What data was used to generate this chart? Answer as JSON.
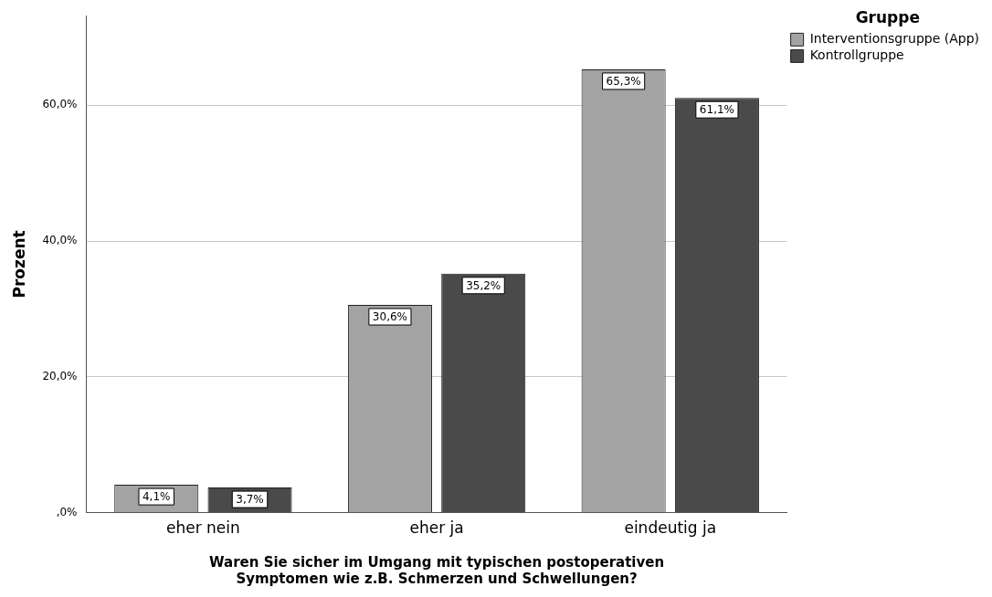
{
  "chart_data": {
    "type": "bar",
    "xlabel": "Waren Sie sicher im Umgang mit typischen postoperativen\nSymptomen wie z.B. Schmerzen und Schwellungen?",
    "ylabel": "Prozent",
    "legend_title": "Gruppe",
    "legend": "top right",
    "grid": "y",
    "categories": [
      "eher nein",
      "eher ja",
      "eindeutig ja"
    ],
    "series": [
      {
        "name": "Interventionsgruppe (App)",
        "color": "#a3a3a3",
        "values": [
          4.1,
          30.6,
          65.3
        ],
        "value_labels": [
          "4,1%",
          "30,6%",
          "65,3%"
        ]
      },
      {
        "name": "Kontrollgruppe",
        "color": "#4a4a4a",
        "values": [
          3.7,
          35.2,
          61.1
        ],
        "value_labels": [
          "3,7%",
          "35,2%",
          "61,1%"
        ]
      }
    ],
    "ylim": [
      0,
      73.2
    ],
    "yticks": [
      {
        "value": 0,
        "label": ",0%"
      },
      {
        "value": 20,
        "label": "20,0%"
      },
      {
        "value": 40,
        "label": "40,0%"
      },
      {
        "value": 60,
        "label": "60,0%"
      }
    ]
  }
}
